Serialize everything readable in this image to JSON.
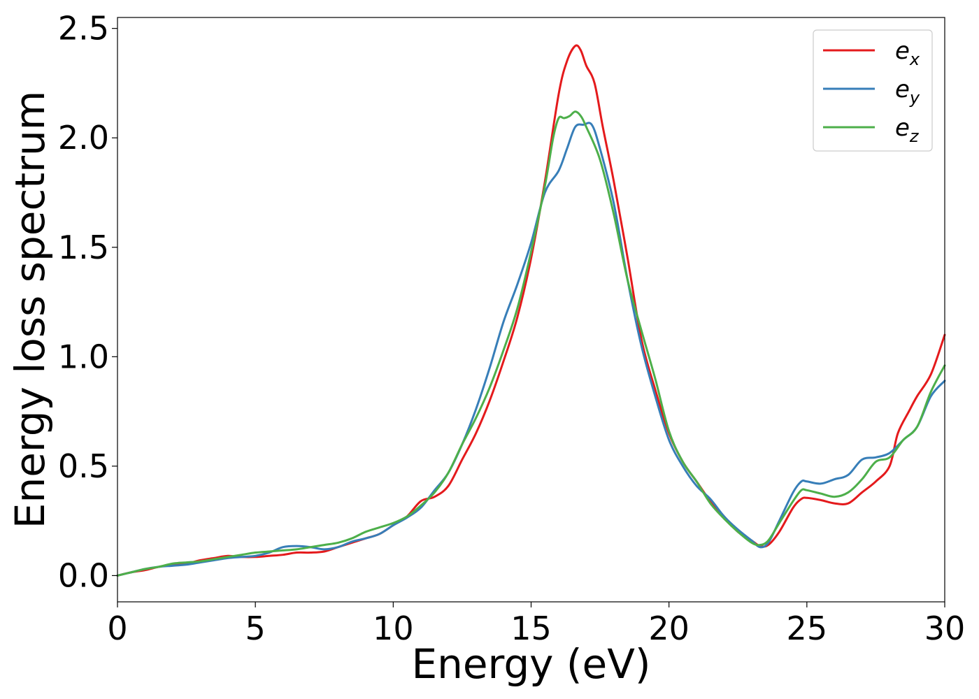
{
  "chart_data": {
    "type": "line",
    "xlabel": "Energy (eV)",
    "ylabel": "Energy loss spectrum",
    "xlim": [
      0,
      30
    ],
    "ylim": [
      -0.12,
      2.55
    ],
    "xticks": [
      0,
      5,
      10,
      15,
      20,
      25,
      30
    ],
    "xtick_labels": [
      "0",
      "5",
      "10",
      "15",
      "20",
      "25",
      "30"
    ],
    "yticks": [
      0.0,
      0.5,
      1.0,
      1.5,
      2.0,
      2.5
    ],
    "ytick_labels": [
      "0.0",
      "0.5",
      "1.0",
      "1.5",
      "2.0",
      "2.5"
    ],
    "grid": false,
    "legend_position": "top-right",
    "series": [
      {
        "name": "e_x",
        "label_main": "e",
        "label_sub": "x",
        "color": "#e41a1c",
        "points": [
          [
            0,
            0.0
          ],
          [
            0.5,
            0.015
          ],
          [
            1,
            0.025
          ],
          [
            1.5,
            0.04
          ],
          [
            2,
            0.05
          ],
          [
            2.5,
            0.055
          ],
          [
            3,
            0.07
          ],
          [
            3.5,
            0.08
          ],
          [
            4,
            0.09
          ],
          [
            4.5,
            0.085
          ],
          [
            5,
            0.085
          ],
          [
            5.5,
            0.09
          ],
          [
            6,
            0.095
          ],
          [
            6.5,
            0.105
          ],
          [
            7,
            0.105
          ],
          [
            7.5,
            0.11
          ],
          [
            8,
            0.13
          ],
          [
            8.5,
            0.15
          ],
          [
            9,
            0.17
          ],
          [
            9.5,
            0.19
          ],
          [
            10,
            0.23
          ],
          [
            10.5,
            0.27
          ],
          [
            11,
            0.34
          ],
          [
            11.5,
            0.36
          ],
          [
            12,
            0.41
          ],
          [
            12.5,
            0.53
          ],
          [
            13,
            0.65
          ],
          [
            13.5,
            0.8
          ],
          [
            14,
            0.98
          ],
          [
            14.5,
            1.18
          ],
          [
            15,
            1.45
          ],
          [
            15.5,
            1.8
          ],
          [
            16,
            2.2
          ],
          [
            16.3,
            2.35
          ],
          [
            16.6,
            2.42
          ],
          [
            16.8,
            2.4
          ],
          [
            17,
            2.33
          ],
          [
            17.3,
            2.25
          ],
          [
            17.6,
            2.05
          ],
          [
            18,
            1.8
          ],
          [
            18.5,
            1.45
          ],
          [
            19,
            1.08
          ],
          [
            19.5,
            0.85
          ],
          [
            20,
            0.65
          ],
          [
            20.5,
            0.52
          ],
          [
            21,
            0.43
          ],
          [
            21.5,
            0.34
          ],
          [
            22,
            0.27
          ],
          [
            22.5,
            0.2
          ],
          [
            23,
            0.16
          ],
          [
            23.3,
            0.135
          ],
          [
            23.6,
            0.14
          ],
          [
            24,
            0.2
          ],
          [
            24.5,
            0.31
          ],
          [
            24.8,
            0.35
          ],
          [
            25,
            0.355
          ],
          [
            25.5,
            0.345
          ],
          [
            26,
            0.33
          ],
          [
            26.5,
            0.33
          ],
          [
            27,
            0.38
          ],
          [
            27.5,
            0.43
          ],
          [
            28,
            0.5
          ],
          [
            28.3,
            0.65
          ],
          [
            28.7,
            0.75
          ],
          [
            29,
            0.82
          ],
          [
            29.5,
            0.92
          ],
          [
            30,
            1.1
          ]
        ]
      },
      {
        "name": "e_y",
        "label_main": "e",
        "label_sub": "y",
        "color": "#377eb8",
        "points": [
          [
            0,
            0.0
          ],
          [
            0.5,
            0.015
          ],
          [
            1,
            0.03
          ],
          [
            1.5,
            0.04
          ],
          [
            2,
            0.045
          ],
          [
            2.5,
            0.05
          ],
          [
            3,
            0.06
          ],
          [
            3.5,
            0.07
          ],
          [
            4,
            0.08
          ],
          [
            4.5,
            0.085
          ],
          [
            5,
            0.09
          ],
          [
            5.5,
            0.105
          ],
          [
            6,
            0.13
          ],
          [
            6.5,
            0.135
          ],
          [
            7,
            0.13
          ],
          [
            7.5,
            0.12
          ],
          [
            8,
            0.13
          ],
          [
            8.5,
            0.155
          ],
          [
            9,
            0.17
          ],
          [
            9.5,
            0.19
          ],
          [
            10,
            0.23
          ],
          [
            10.5,
            0.265
          ],
          [
            11,
            0.31
          ],
          [
            11.5,
            0.39
          ],
          [
            12,
            0.47
          ],
          [
            12.5,
            0.6
          ],
          [
            13,
            0.76
          ],
          [
            13.5,
            0.95
          ],
          [
            14,
            1.16
          ],
          [
            14.5,
            1.33
          ],
          [
            15,
            1.52
          ],
          [
            15.5,
            1.75
          ],
          [
            16,
            1.85
          ],
          [
            16.3,
            1.95
          ],
          [
            16.6,
            2.05
          ],
          [
            16.9,
            2.06
          ],
          [
            17.2,
            2.06
          ],
          [
            17.5,
            1.95
          ],
          [
            18,
            1.7
          ],
          [
            18.5,
            1.35
          ],
          [
            19,
            1.05
          ],
          [
            19.5,
            0.82
          ],
          [
            20,
            0.62
          ],
          [
            20.5,
            0.5
          ],
          [
            21,
            0.41
          ],
          [
            21.5,
            0.35
          ],
          [
            22,
            0.27
          ],
          [
            22.5,
            0.21
          ],
          [
            23,
            0.16
          ],
          [
            23.3,
            0.13
          ],
          [
            23.6,
            0.15
          ],
          [
            24,
            0.25
          ],
          [
            24.5,
            0.38
          ],
          [
            24.8,
            0.43
          ],
          [
            25,
            0.43
          ],
          [
            25.5,
            0.42
          ],
          [
            26,
            0.44
          ],
          [
            26.5,
            0.46
          ],
          [
            27,
            0.53
          ],
          [
            27.5,
            0.54
          ],
          [
            28,
            0.56
          ],
          [
            28.5,
            0.62
          ],
          [
            29,
            0.68
          ],
          [
            29.5,
            0.82
          ],
          [
            30,
            0.89
          ]
        ]
      },
      {
        "name": "e_z",
        "label_main": "e",
        "label_sub": "z",
        "color": "#4daf4a",
        "points": [
          [
            0,
            0.0
          ],
          [
            0.5,
            0.015
          ],
          [
            1,
            0.03
          ],
          [
            1.5,
            0.04
          ],
          [
            2,
            0.055
          ],
          [
            2.5,
            0.06
          ],
          [
            3,
            0.065
          ],
          [
            3.5,
            0.075
          ],
          [
            4,
            0.085
          ],
          [
            4.5,
            0.095
          ],
          [
            5,
            0.105
          ],
          [
            5.5,
            0.11
          ],
          [
            6,
            0.115
          ],
          [
            6.5,
            0.12
          ],
          [
            7,
            0.13
          ],
          [
            7.5,
            0.14
          ],
          [
            8,
            0.15
          ],
          [
            8.5,
            0.17
          ],
          [
            9,
            0.2
          ],
          [
            9.5,
            0.22
          ],
          [
            10,
            0.24
          ],
          [
            10.5,
            0.27
          ],
          [
            11,
            0.32
          ],
          [
            11.5,
            0.38
          ],
          [
            12,
            0.47
          ],
          [
            12.5,
            0.6
          ],
          [
            13,
            0.72
          ],
          [
            13.5,
            0.86
          ],
          [
            14,
            1.03
          ],
          [
            14.5,
            1.22
          ],
          [
            15,
            1.48
          ],
          [
            15.5,
            1.78
          ],
          [
            15.8,
            2.0
          ],
          [
            16,
            2.09
          ],
          [
            16.2,
            2.09
          ],
          [
            16.4,
            2.1
          ],
          [
            16.6,
            2.12
          ],
          [
            16.8,
            2.1
          ],
          [
            17,
            2.05
          ],
          [
            17.5,
            1.9
          ],
          [
            18,
            1.65
          ],
          [
            18.5,
            1.35
          ],
          [
            19,
            1.12
          ],
          [
            19.5,
            0.9
          ],
          [
            20,
            0.66
          ],
          [
            20.5,
            0.52
          ],
          [
            21,
            0.43
          ],
          [
            21.5,
            0.33
          ],
          [
            22,
            0.26
          ],
          [
            22.5,
            0.2
          ],
          [
            23,
            0.15
          ],
          [
            23.3,
            0.14
          ],
          [
            23.6,
            0.16
          ],
          [
            24,
            0.24
          ],
          [
            24.5,
            0.34
          ],
          [
            24.8,
            0.39
          ],
          [
            25,
            0.39
          ],
          [
            25.5,
            0.375
          ],
          [
            26,
            0.36
          ],
          [
            26.5,
            0.38
          ],
          [
            27,
            0.44
          ],
          [
            27.5,
            0.52
          ],
          [
            28,
            0.54
          ],
          [
            28.5,
            0.62
          ],
          [
            29,
            0.68
          ],
          [
            29.5,
            0.84
          ],
          [
            30,
            0.96
          ]
        ]
      }
    ]
  }
}
